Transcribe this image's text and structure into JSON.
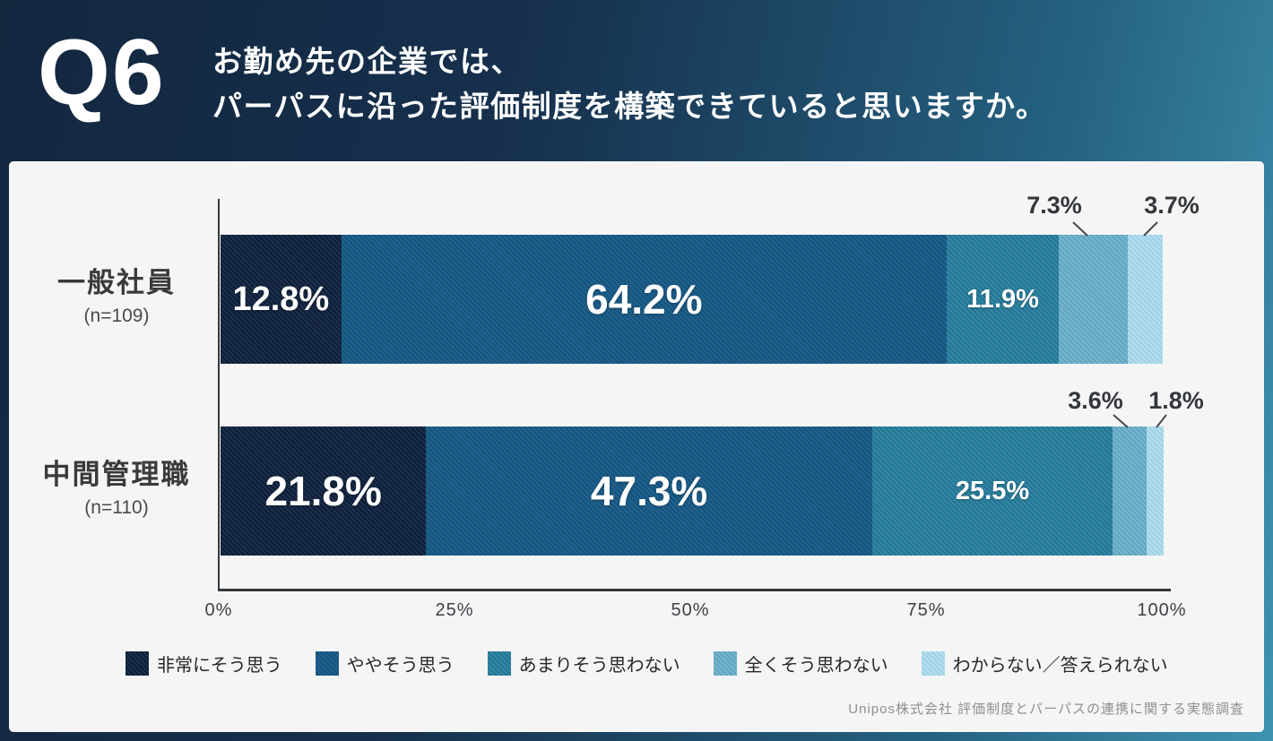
{
  "header": {
    "q_label": "Q6",
    "title_line1": "お勤め先の企業では、",
    "title_line2": "パーパスに沿った評価制度を構築できていると思いますか。"
  },
  "chart_data": {
    "type": "bar",
    "variant": "stacked-horizontal",
    "unit": "%",
    "categories": [
      "一般社員 (n=109)",
      "中間管理職 (n=110)"
    ],
    "series": [
      {
        "name": "非常にそう思う",
        "color": "#16273f",
        "values": [
          12.8,
          21.8
        ]
      },
      {
        "name": "ややそう思う",
        "color": "#1d5b85",
        "values": [
          64.2,
          47.3
        ]
      },
      {
        "name": "あまりそう思わない",
        "color": "#2c80a0",
        "values": [
          11.9,
          25.5
        ]
      },
      {
        "name": "全くそう思わない",
        "color": "#6cadc7",
        "values": [
          7.3,
          3.6
        ]
      },
      {
        "name": "わからない／答えられない",
        "color": "#a9d8e9",
        "values": [
          3.7,
          1.8
        ]
      }
    ],
    "xlim": [
      0,
      100
    ],
    "x_ticks": [
      "0%",
      "25%",
      "50%",
      "75%",
      "100%"
    ],
    "legend_position": "bottom",
    "grid": false
  },
  "bars": {
    "row0": {
      "label": "一般社員",
      "n_label": "(n=109)",
      "widths": {
        "s1": 12.8,
        "s2": 64.2,
        "s3": 11.9,
        "s4": 7.3,
        "s5": 3.7
      },
      "inner_labels": {
        "s1": "12.8%",
        "s2": "64.2%",
        "s3": "11.9%"
      },
      "outside_labels": {
        "s4": "7.3%",
        "s5": "3.7%"
      }
    },
    "row1": {
      "label": "中間管理職",
      "n_label": "(n=110)",
      "widths": {
        "s1": 21.8,
        "s2": 47.3,
        "s3": 25.5,
        "s4": 3.6,
        "s5": 1.8
      },
      "inner_labels": {
        "s1": "21.8%",
        "s2": "47.3%",
        "s3": "25.5%"
      },
      "outside_labels": {
        "s4": "3.6%",
        "s5": "1.8%"
      }
    }
  },
  "axis": {
    "ticks": [
      "0%",
      "25%",
      "50%",
      "75%",
      "100%"
    ]
  },
  "legend": {
    "items": [
      {
        "label": "非常にそう思う",
        "color": "#16273f"
      },
      {
        "label": "ややそう思う",
        "color": "#1d5b85"
      },
      {
        "label": "あまりそう思わない",
        "color": "#2c80a0"
      },
      {
        "label": "全くそう思わない",
        "color": "#6cadc7"
      },
      {
        "label": "わからない／答えられない",
        "color": "#a9d8e9"
      }
    ]
  },
  "source": "Unipos株式会社 評価制度とパーパスの連携に関する実態調査"
}
